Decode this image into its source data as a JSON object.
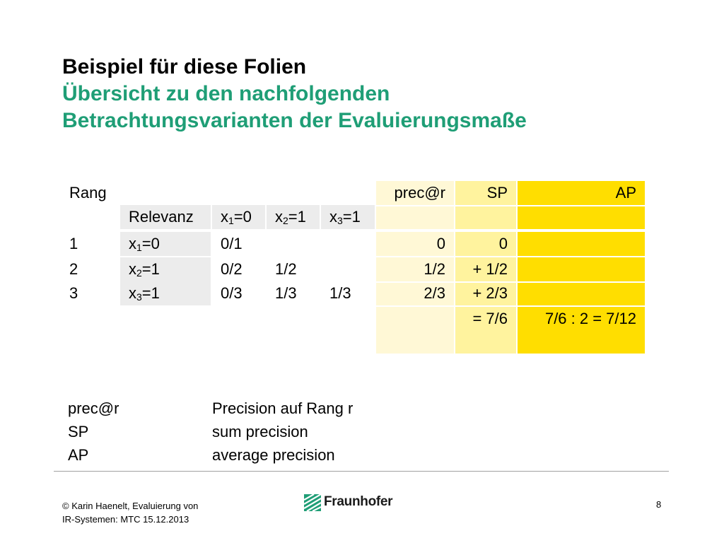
{
  "title": {
    "line1": "Beispiel für diese Folien",
    "line2": "Übersicht zu den nachfolgenden",
    "line3": "Betrachtungsvarianten der Evaluierungsmaße"
  },
  "table": {
    "rang_header": "Rang",
    "prec_header": "prec@r",
    "sp_header": "SP",
    "ap_header": "AP",
    "relevanz_header": "Relevanz",
    "col_x1": {
      "base": "x",
      "sub": "1",
      "rest": "=0"
    },
    "col_x2": {
      "base": "x",
      "sub": "2",
      "rest": "=1"
    },
    "col_x3": {
      "base": "x",
      "sub": "3",
      "rest": "=1"
    },
    "rows": [
      {
        "rang": "1",
        "rel": {
          "base": "x",
          "sub": "1",
          "rest": "=0"
        },
        "c1": "0/1",
        "c2": "",
        "c3": "",
        "prec": "0",
        "sp": "0"
      },
      {
        "rang": "2",
        "rel": {
          "base": "x",
          "sub": "2",
          "rest": "=1"
        },
        "c1": "0/2",
        "c2": "1/2",
        "c3": "",
        "prec": "1/2",
        "sp": "+ 1/2"
      },
      {
        "rang": "3",
        "rel": {
          "base": "x",
          "sub": "3",
          "rest": "=1"
        },
        "c1": "0/3",
        "c2": "1/3",
        "c3": "1/3",
        "prec": "2/3",
        "sp": "+ 2/3"
      }
    ],
    "sp_total": "= 7/6",
    "ap_total": "7/6 : 2 = 7/12"
  },
  "legend": [
    {
      "term": "prec@r",
      "desc": "Precision auf Rang r"
    },
    {
      "term": "SP",
      "desc": "sum precision"
    },
    {
      "term": "AP",
      "desc": "average precision"
    }
  ],
  "footer": {
    "line1": "© Karin  Haenelt, Evaluierung von",
    "line2": "IR-Systemen: MTC  15.12.2013",
    "page": "8",
    "logo_text": "Fraunhofer"
  },
  "colors": {
    "title_green": "#1f9e76",
    "ap_yellow": "#ffde00",
    "sp_light_yellow": "#fff39e",
    "prec_pale_yellow": "#fff8d6",
    "relevanz_gray": "#ececec"
  }
}
